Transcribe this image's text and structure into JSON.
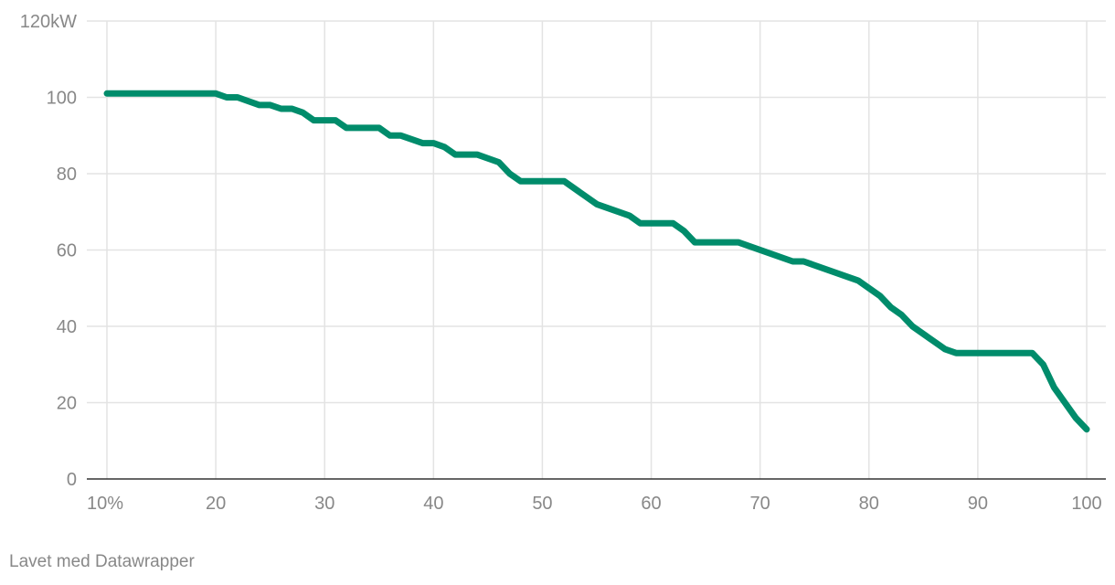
{
  "chart_data": {
    "type": "line",
    "title": "",
    "xlabel": "",
    "ylabel": "",
    "xlim": [
      10,
      100
    ],
    "ylim": [
      0,
      120
    ],
    "x_ticks": [
      10,
      20,
      30,
      40,
      50,
      60,
      70,
      80,
      90,
      100
    ],
    "x_tick_labels": [
      "10%",
      "20",
      "30",
      "40",
      "50",
      "60",
      "70",
      "80",
      "90",
      "100"
    ],
    "y_ticks": [
      0,
      20,
      40,
      60,
      80,
      100,
      120
    ],
    "y_tick_labels": [
      "0",
      "20",
      "40",
      "60",
      "80",
      "100",
      "120kW"
    ],
    "grid": true,
    "series": [
      {
        "color": "#008c6b",
        "x": [
          10,
          20,
          21,
          22,
          24,
          25,
          26,
          27,
          28,
          29,
          30,
          31,
          32,
          35,
          36,
          37,
          39,
          40,
          41,
          42,
          44,
          46,
          47,
          48,
          52,
          55,
          58,
          59,
          62,
          63,
          64,
          68,
          73,
          74,
          79,
          81,
          82,
          83,
          84,
          87,
          88,
          95,
          96,
          97,
          98,
          99,
          100
        ],
        "y": [
          101,
          101,
          100,
          100,
          98,
          98,
          97,
          97,
          96,
          94,
          94,
          94,
          92,
          92,
          90,
          90,
          88,
          88,
          87,
          85,
          85,
          83,
          80,
          78,
          78,
          72,
          69,
          67,
          67,
          65,
          62,
          62,
          57,
          57,
          52,
          48,
          45,
          43,
          40,
          34,
          33,
          33,
          30,
          24,
          20,
          16,
          13
        ]
      }
    ]
  },
  "footer": {
    "credit": "Lavet med Datawrapper"
  }
}
